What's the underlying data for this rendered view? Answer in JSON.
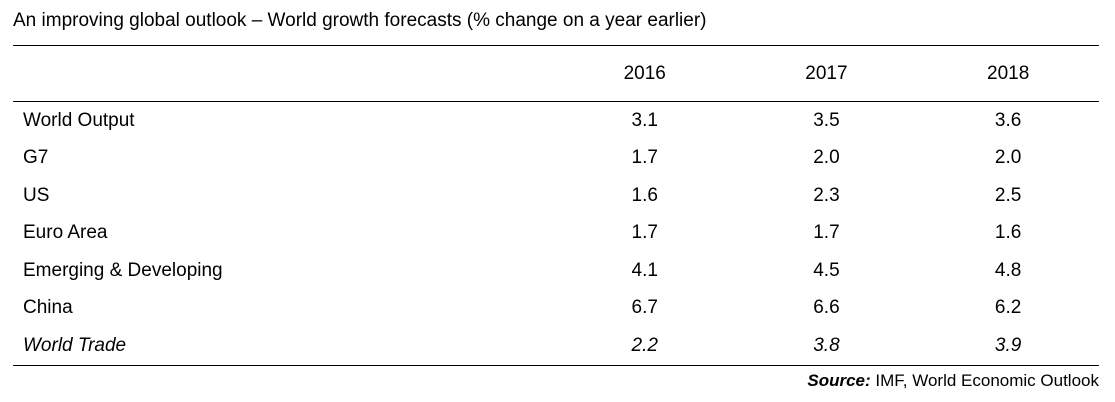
{
  "title": "An improving global outlook – World growth forecasts (% change on a year earlier)",
  "source": {
    "label": "Source:",
    "text": "IMF, World Economic Outlook"
  },
  "chart_data": {
    "type": "table",
    "columns": [
      "",
      "2016",
      "2017",
      "2018"
    ],
    "rows": [
      {
        "label": "World Output",
        "values": [
          "3.1",
          "3.5",
          "3.6"
        ],
        "italic": false
      },
      {
        "label": "G7",
        "values": [
          "1.7",
          "2.0",
          "2.0"
        ],
        "italic": false
      },
      {
        "label": "US",
        "values": [
          "1.6",
          "2.3",
          "2.5"
        ],
        "italic": false
      },
      {
        "label": "Euro Area",
        "values": [
          "1.7",
          "1.7",
          "1.6"
        ],
        "italic": false
      },
      {
        "label": "Emerging & Developing",
        "values": [
          "4.1",
          "4.5",
          "4.8"
        ],
        "italic": false
      },
      {
        "label": "China",
        "values": [
          "6.7",
          "6.6",
          "6.2"
        ],
        "italic": false
      },
      {
        "label": "World Trade",
        "values": [
          "2.2",
          "3.8",
          "3.9"
        ],
        "italic": true
      }
    ]
  }
}
